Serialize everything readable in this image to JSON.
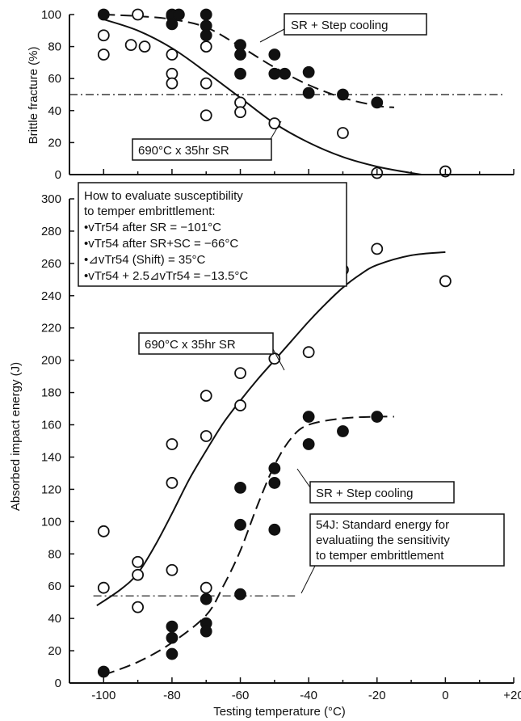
{
  "chart_data": [
    {
      "type": "scatter",
      "panel": "top",
      "ylabel": "Brittle fracture (%)",
      "xlim": [
        -110,
        20
      ],
      "ylim": [
        0,
        100
      ],
      "yticks": [
        0,
        20,
        40,
        60,
        80,
        100
      ],
      "reference_line": 50,
      "series": [
        {
          "name": "SR + Step cooling",
          "marker": "filled",
          "points": [
            [
              -100,
              100
            ],
            [
              -80,
              100
            ],
            [
              -80,
              99
            ],
            [
              -80,
              94
            ],
            [
              -78,
              100
            ],
            [
              -70,
              100
            ],
            [
              -70,
              93
            ],
            [
              -70,
              87
            ],
            [
              -60,
              81
            ],
            [
              -60,
              75
            ],
            [
              -60,
              63
            ],
            [
              -50,
              75
            ],
            [
              -50,
              63
            ],
            [
              -47,
              63
            ],
            [
              -40,
              64
            ],
            [
              -40,
              51
            ],
            [
              -30,
              50
            ],
            [
              -20,
              45
            ]
          ],
          "curve": [
            [
              -100,
              100
            ],
            [
              -90,
              99
            ],
            [
              -80,
              97
            ],
            [
              -70,
              92
            ],
            [
              -60,
              80
            ],
            [
              -50,
              67
            ],
            [
              -40,
              56
            ],
            [
              -30,
              48
            ],
            [
              -20,
              43
            ],
            [
              -15,
              42
            ]
          ]
        },
        {
          "name": "690°C x 35hr SR",
          "marker": "open",
          "points": [
            [
              -100,
              87
            ],
            [
              -100,
              75
            ],
            [
              -90,
              100
            ],
            [
              -92,
              81
            ],
            [
              -88,
              80
            ],
            [
              -80,
              75
            ],
            [
              -80,
              63
            ],
            [
              -80,
              57
            ],
            [
              -70,
              80
            ],
            [
              -70,
              57
            ],
            [
              -70,
              37
            ],
            [
              -60,
              45
            ],
            [
              -60,
              39
            ],
            [
              -50,
              32
            ],
            [
              -30,
              26
            ],
            [
              -20,
              1
            ],
            [
              0,
              2
            ]
          ],
          "curve": [
            [
              -100,
              97
            ],
            [
              -90,
              90
            ],
            [
              -80,
              79
            ],
            [
              -70,
              64
            ],
            [
              -60,
              48
            ],
            [
              -50,
              32
            ],
            [
              -40,
              20
            ],
            [
              -30,
              11
            ],
            [
              -20,
              5
            ],
            [
              -10,
              1
            ],
            [
              -7,
              0
            ]
          ]
        }
      ]
    },
    {
      "type": "scatter",
      "panel": "bottom",
      "xlabel": "Testing temperature (°C)",
      "ylabel": "Absorbed impact energy (J)",
      "xlim": [
        -110,
        20
      ],
      "ylim": [
        0,
        300
      ],
      "xticks": [
        -100,
        -80,
        -60,
        -40,
        -20,
        0,
        20
      ],
      "xtick_labels": [
        "-100",
        "-80",
        "-60",
        "-40",
        "-20",
        "0",
        "+20"
      ],
      "yticks": [
        0,
        20,
        40,
        60,
        80,
        100,
        120,
        140,
        160,
        180,
        200,
        220,
        240,
        260,
        280,
        300
      ],
      "reference_line": 54,
      "series": [
        {
          "name": "690°C x 35hr SR",
          "marker": "open",
          "points": [
            [
              -100,
              94
            ],
            [
              -100,
              59
            ],
            [
              -90,
              75
            ],
            [
              -90,
              67
            ],
            [
              -90,
              47
            ],
            [
              -80,
              148
            ],
            [
              -80,
              124
            ],
            [
              -80,
              70
            ],
            [
              -70,
              178
            ],
            [
              -70,
              153
            ],
            [
              -70,
              59
            ],
            [
              -60,
              192
            ],
            [
              -60,
              172
            ],
            [
              -50,
              201
            ],
            [
              -40,
              205
            ],
            [
              -30,
              256
            ],
            [
              -20,
              269
            ],
            [
              0,
              249
            ]
          ],
          "curve": [
            [
              -102,
              48
            ],
            [
              -95,
              58
            ],
            [
              -90,
              68
            ],
            [
              -85,
              85
            ],
            [
              -80,
              105
            ],
            [
              -75,
              126
            ],
            [
              -70,
              144
            ],
            [
              -65,
              161
            ],
            [
              -60,
              175
            ],
            [
              -55,
              188
            ],
            [
              -50,
              200
            ],
            [
              -45,
              212
            ],
            [
              -40,
              224
            ],
            [
              -35,
              235
            ],
            [
              -30,
              245
            ],
            [
              -25,
              253
            ],
            [
              -20,
              259
            ],
            [
              -10,
              265
            ],
            [
              0,
              267
            ]
          ]
        },
        {
          "name": "SR + Step cooling",
          "marker": "filled",
          "points": [
            [
              -100,
              7
            ],
            [
              -80,
              35
            ],
            [
              -80,
              28
            ],
            [
              -80,
              18
            ],
            [
              -70,
              52
            ],
            [
              -70,
              37
            ],
            [
              -70,
              32
            ],
            [
              -60,
              121
            ],
            [
              -60,
              98
            ],
            [
              -60,
              55
            ],
            [
              -50,
              133
            ],
            [
              -50,
              124
            ],
            [
              -50,
              95
            ],
            [
              -40,
              165
            ],
            [
              -40,
              148
            ],
            [
              -30,
              156
            ],
            [
              -20,
              165
            ]
          ],
          "curve": [
            [
              -100,
              5
            ],
            [
              -90,
              13
            ],
            [
              -80,
              25
            ],
            [
              -70,
              42
            ],
            [
              -65,
              60
            ],
            [
              -60,
              82
            ],
            [
              -55,
              110
            ],
            [
              -50,
              135
            ],
            [
              -45,
              152
            ],
            [
              -40,
              160
            ],
            [
              -30,
              164
            ],
            [
              -20,
              165
            ],
            [
              -15,
              165
            ]
          ]
        }
      ]
    }
  ],
  "annotations": {
    "top_sc_label": "SR + Step cooling",
    "top_sr_label": "690°C x 35hr SR",
    "bottom_sr_label": "690°C x 35hr SR",
    "bottom_sc_label": "SR + Step cooling",
    "standard_energy": [
      "54J: Standard energy for",
      "evaluatiing the sensitivity",
      "to temper embrittlement"
    ],
    "evaluation_box": [
      "How to evaluate susceptibility",
      "to temper embrittlement:",
      "•vTr54 after SR = −101°C",
      "•vTr54 after SR+SC = −66°C",
      "•⊿vTr54 (Shift) = 35°C",
      "•vTr54 + 2.5⊿vTr54 = −13.5°C"
    ]
  }
}
